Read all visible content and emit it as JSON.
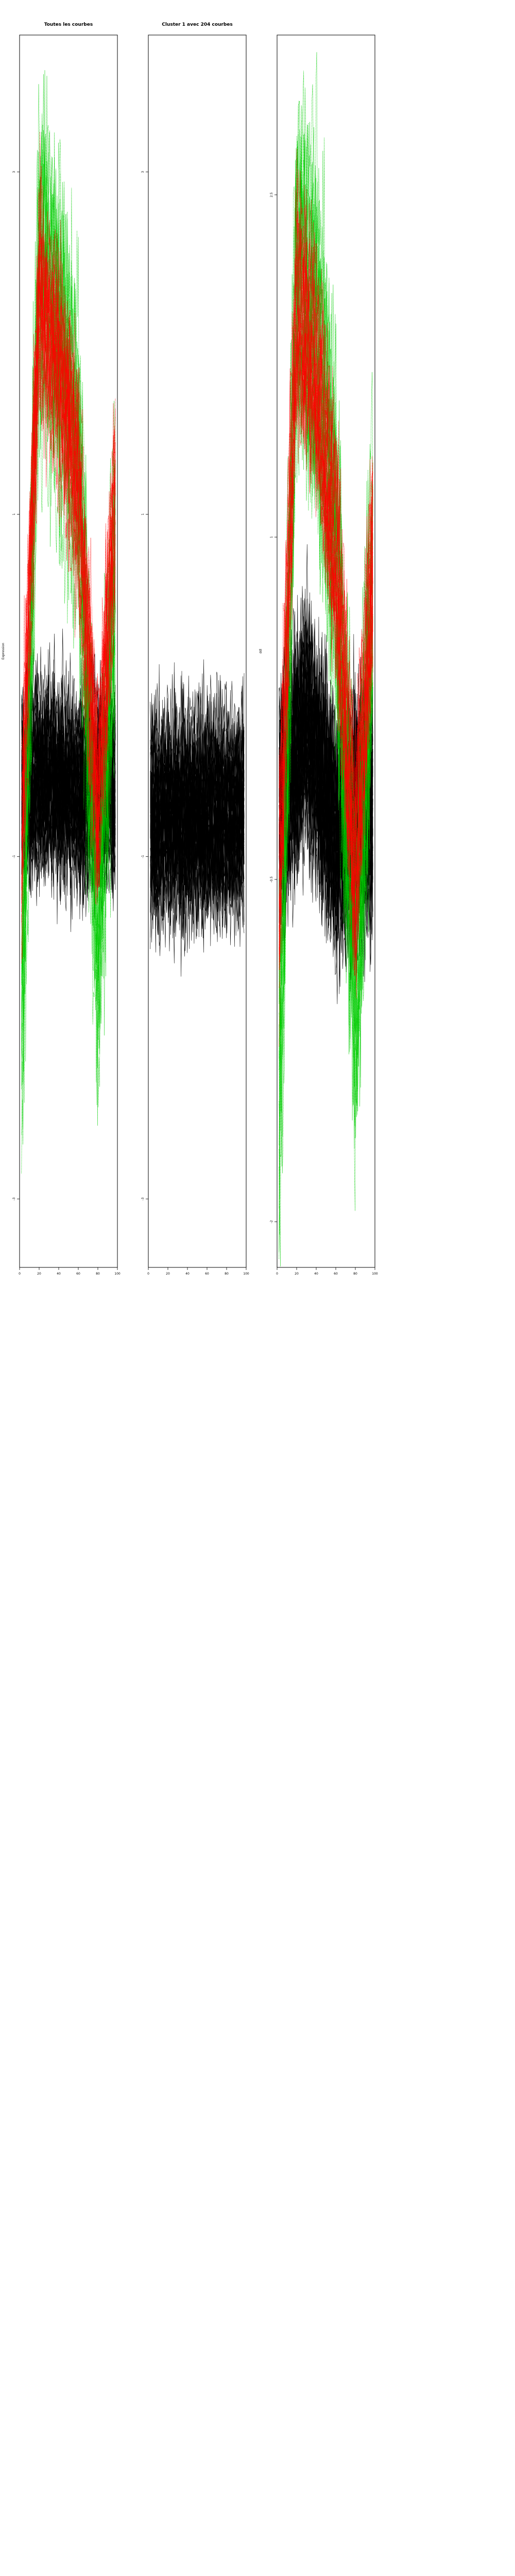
{
  "colors": {
    "black": "#000000",
    "green": "#00cc00",
    "red": "#ff0000",
    "frame": "#000000"
  },
  "chart_data": [
    {
      "type": "line",
      "title": "Toutes les courbes",
      "ylabel": "Expression",
      "xlim": [
        0,
        100
      ],
      "x_ticks": [
        0,
        20,
        40,
        60,
        80,
        100
      ],
      "x_tick_labels": [
        "0",
        "20",
        "40",
        "60",
        "80",
        "100"
      ],
      "ylim": [
        -3.4,
        3.8
      ],
      "y_ticks": [
        -3,
        -1,
        1,
        3
      ],
      "y_tick_labels": [
        "-3",
        "-1",
        "1",
        "3"
      ],
      "grid": false,
      "series": [
        {
          "color": "#000000",
          "x_range": [
            2,
            98
          ],
          "center": -0.6,
          "amp": 0.9,
          "x": [
            2,
            30,
            60,
            98
          ],
          "y": [
            -0.6,
            -0.55,
            -0.65,
            -0.6
          ]
        },
        {
          "color": "#00cc00",
          "x_range": [
            2,
            98
          ],
          "center": 0.8,
          "amp": 1.6,
          "x": [
            2,
            20,
            40,
            60,
            80,
            98
          ],
          "y": [
            -2.0,
            2.5,
            2.0,
            1.3,
            -1.5,
            0.8
          ]
        },
        {
          "color": "#ff0000",
          "x_range": [
            2,
            98
          ],
          "center": 1.1,
          "amp": 1.0,
          "x": [
            2,
            20,
            40,
            60,
            80,
            98
          ],
          "y": [
            -1.0,
            2.2,
            1.8,
            1.1,
            -0.8,
            1.1
          ]
        }
      ]
    },
    {
      "type": "line",
      "title": "Cluster 1 avec 204 courbes",
      "ylabel": "",
      "xlim": [
        0,
        100
      ],
      "x_ticks": [
        0,
        20,
        40,
        60,
        80,
        100
      ],
      "x_tick_labels": [
        "0",
        "20",
        "40",
        "60",
        "80",
        "100"
      ],
      "ylim": [
        -3.4,
        3.8
      ],
      "y_ticks": [
        -3,
        -1,
        1,
        3
      ],
      "y_tick_labels": [
        "-3",
        "-1",
        "1",
        "3"
      ],
      "grid": false,
      "series": [
        {
          "color": "#000000",
          "x_range": [
            2,
            98
          ],
          "center": -0.7,
          "amp": 1.0,
          "x": [
            2,
            30,
            60,
            98
          ],
          "y": [
            -0.7,
            -0.7,
            -0.7,
            -0.7
          ]
        }
      ]
    },
    {
      "type": "line",
      "title": "",
      "ylabel": "ddl",
      "xlim": [
        0,
        100
      ],
      "x_ticks": [
        0,
        20,
        40,
        60,
        80,
        100
      ],
      "x_tick_labels": [
        "0",
        "20",
        "40",
        "60",
        "80",
        "100"
      ],
      "ylim": [
        -2.2,
        3.2
      ],
      "y_ticks": [
        -2,
        -0.5,
        1,
        2.5
      ],
      "y_tick_labels": [
        "-2",
        "-0.5",
        "1",
        "2.5"
      ],
      "grid": false,
      "series": [
        {
          "color": "#000000",
          "x_range": [
            2,
            98
          ],
          "center": -0.2,
          "amp": 0.9,
          "x": [
            2,
            30,
            60,
            98
          ],
          "y": [
            -0.2,
            0.2,
            -0.3,
            -0.2
          ]
        },
        {
          "color": "#00cc00",
          "x_range": [
            2,
            98
          ],
          "center": 0.9,
          "amp": 1.3,
          "x": [
            2,
            20,
            40,
            60,
            80,
            98
          ],
          "y": [
            -1.4,
            2.3,
            2.0,
            1.1,
            -0.9,
            0.9
          ]
        },
        {
          "color": "#ff0000",
          "x_range": [
            2,
            98
          ],
          "center": 0.9,
          "amp": 0.8,
          "x": [
            2,
            20,
            40,
            60,
            80,
            98
          ],
          "y": [
            -0.6,
            2.0,
            1.7,
            0.9,
            -0.5,
            0.9
          ]
        }
      ]
    }
  ]
}
